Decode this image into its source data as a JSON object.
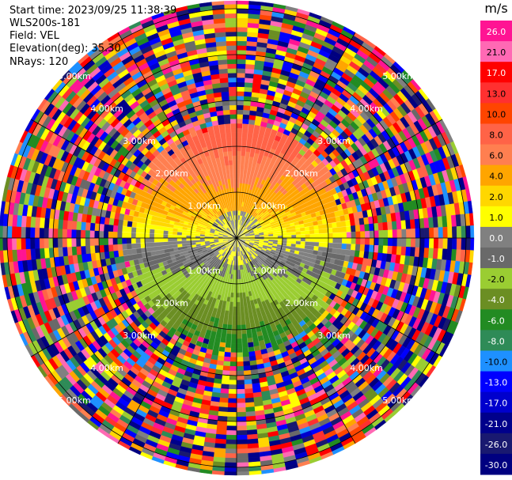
{
  "header": {
    "start_time": "Start time: 2023/09/25 11:38:39",
    "instrument": "WLS200s-181",
    "field": "Field: VEL",
    "elevation": "Elevation(deg): 35.30",
    "nrays": "NRays: 120"
  },
  "colorbar": {
    "unit": "m/s",
    "ticks": [
      "26.0",
      "21.0",
      "17.0",
      "13.0",
      "10.0",
      "8.0",
      "6.0",
      "4.0",
      "2.0",
      "1.0",
      "0.0",
      "-1.0",
      "-2.0",
      "-4.0",
      "-6.0",
      "-8.0",
      "-10.0",
      "-13.0",
      "-17.0",
      "-21.0",
      "-26.0",
      "-30.0"
    ],
    "colors": [
      "#ff1493",
      "#ff69b4",
      "#ff0000",
      "#ff3030",
      "#ff4500",
      "#ff6347",
      "#ff7f50",
      "#ffa500",
      "#ffd700",
      "#ffff00",
      "#808080",
      "#696969",
      "#9acd32",
      "#6b8e23",
      "#228b22",
      "#2e8b57",
      "#1e90ff",
      "#0000ff",
      "#0000cd",
      "#00008b",
      "#191970",
      "#000080"
    ]
  },
  "chart_data": {
    "type": "heatmap",
    "projection": "polar-ppi",
    "nrays": 120,
    "range_rings_km": [
      1,
      2,
      3,
      4,
      5
    ],
    "ring_labels": [
      "1.00km",
      "2.00km",
      "3.00km",
      "4.00km",
      "5.00km"
    ],
    "valid_range_km": 2.5,
    "max_range_km": 6.0,
    "velocity_field_summary": {
      "north_sector_ms": [
        4,
        8
      ],
      "near_center_north_ms": [
        1,
        2
      ],
      "center_ms": [
        -1,
        0
      ],
      "south_sector_ms": [
        -10,
        -4
      ]
    },
    "grid": true,
    "spokes_deg": [
      0,
      30,
      60,
      90,
      120,
      150,
      180,
      210,
      240,
      270,
      300,
      330
    ]
  }
}
